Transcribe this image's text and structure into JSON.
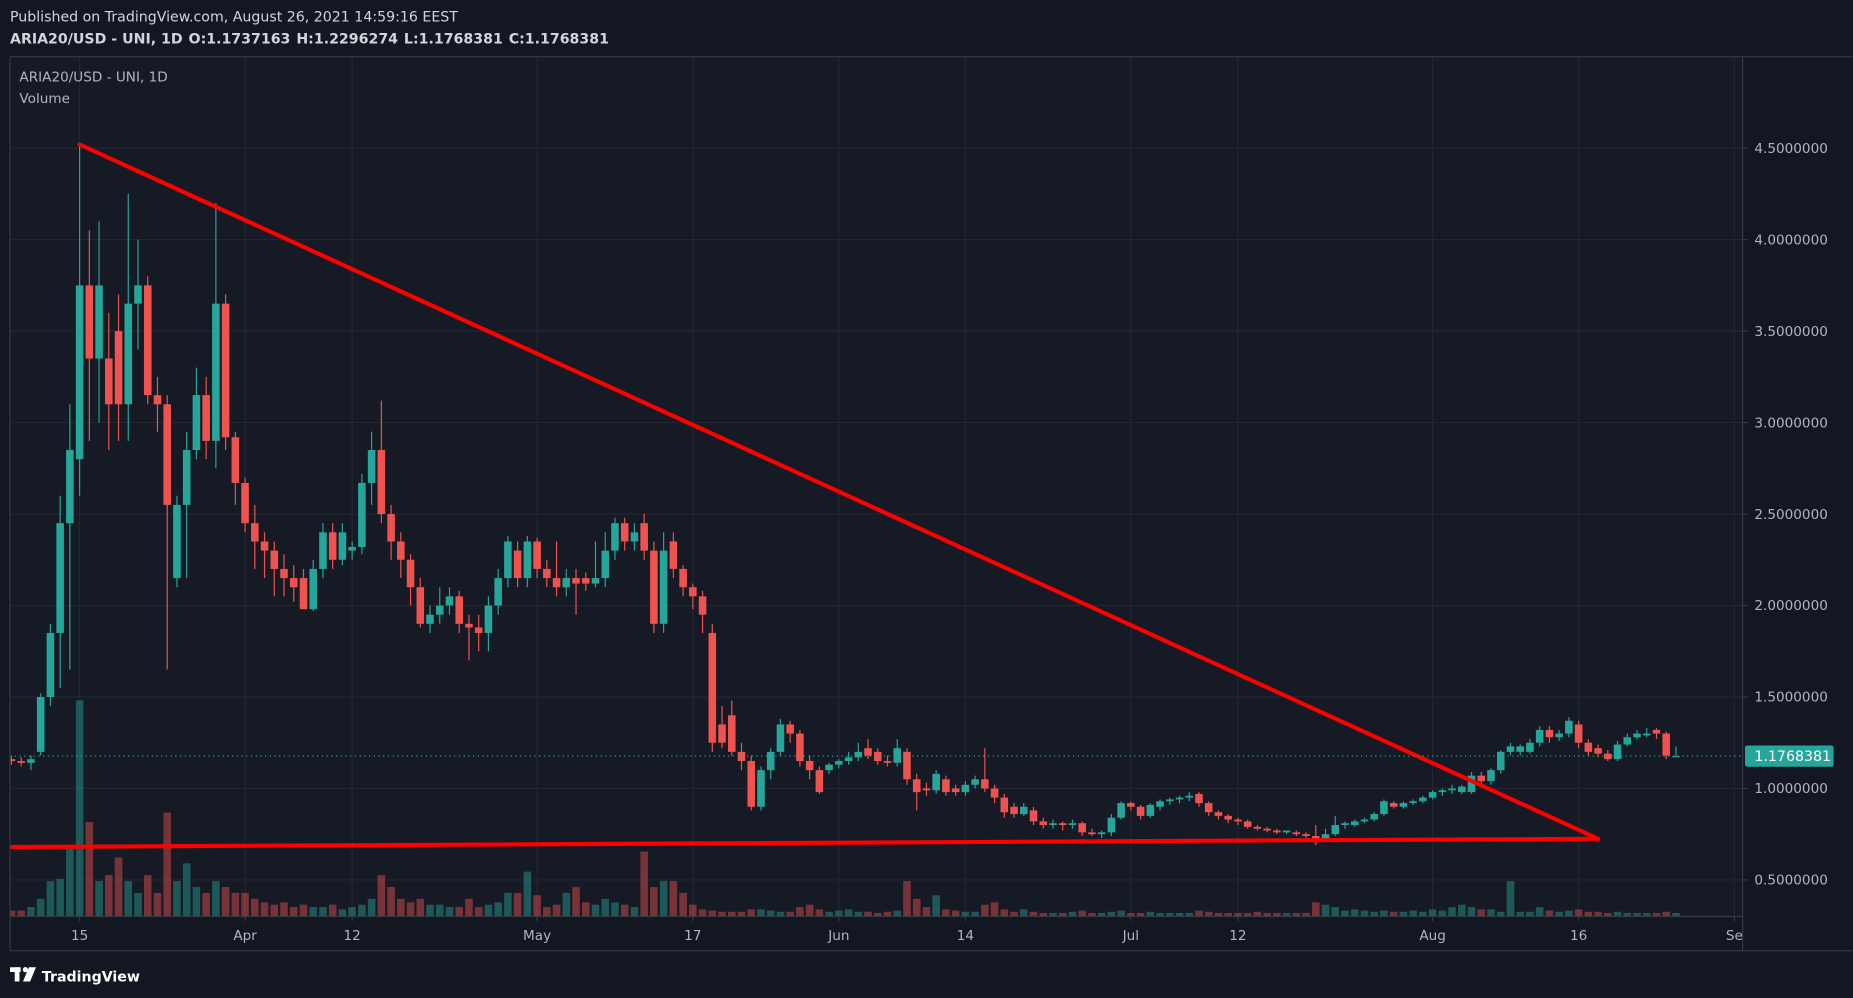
{
  "header": {
    "published": "Published on TradingView.com, August 26, 2021 14:59:16 EEST",
    "brand": "TradingView"
  },
  "chart_data": {
    "type": "candlestick",
    "symbol": "ARIA20/USD - UNI, 1D",
    "volume_label": "Volume",
    "ohlc_labels": [
      "O:",
      "H:",
      "L:",
      "C:"
    ],
    "up_color": "#26a69a",
    "down_color": "#ef5350",
    "x": [
      "2021-03-08",
      "2021-03-09",
      "2021-03-10",
      "2021-03-11",
      "2021-03-12",
      "2021-03-13",
      "2021-03-14",
      "2021-03-15",
      "2021-03-16",
      "2021-03-17",
      "2021-03-18",
      "2021-03-19",
      "2021-03-20",
      "2021-03-21",
      "2021-03-22",
      "2021-03-23",
      "2021-03-24",
      "2021-03-25",
      "2021-03-26",
      "2021-03-27",
      "2021-03-28",
      "2021-03-29",
      "2021-03-30",
      "2021-03-31",
      "2021-04-01",
      "2021-04-02",
      "2021-04-03",
      "2021-04-04",
      "2021-04-05",
      "2021-04-06",
      "2021-04-07",
      "2021-04-08",
      "2021-04-09",
      "2021-04-10",
      "2021-04-11",
      "2021-04-12",
      "2021-04-13",
      "2021-04-14",
      "2021-04-15",
      "2021-04-16",
      "2021-04-17",
      "2021-04-18",
      "2021-04-19",
      "2021-04-20",
      "2021-04-21",
      "2021-04-22",
      "2021-04-23",
      "2021-04-24",
      "2021-04-25",
      "2021-04-26",
      "2021-04-27",
      "2021-04-28",
      "2021-04-29",
      "2021-04-30",
      "2021-05-01",
      "2021-05-02",
      "2021-05-03",
      "2021-05-04",
      "2021-05-05",
      "2021-05-06",
      "2021-05-07",
      "2021-05-08",
      "2021-05-09",
      "2021-05-10",
      "2021-05-11",
      "2021-05-12",
      "2021-05-13",
      "2021-05-14",
      "2021-05-15",
      "2021-05-16",
      "2021-05-17",
      "2021-05-18",
      "2021-05-19",
      "2021-05-20",
      "2021-05-21",
      "2021-05-22",
      "2021-05-23",
      "2021-05-24",
      "2021-05-25",
      "2021-05-26",
      "2021-05-27",
      "2021-05-28",
      "2021-05-29",
      "2021-05-30",
      "2021-05-31",
      "2021-06-01",
      "2021-06-02",
      "2021-06-03",
      "2021-06-04",
      "2021-06-05",
      "2021-06-06",
      "2021-06-07",
      "2021-06-08",
      "2021-06-09",
      "2021-06-10",
      "2021-06-11",
      "2021-06-12",
      "2021-06-13",
      "2021-06-14",
      "2021-06-15",
      "2021-06-16",
      "2021-06-17",
      "2021-06-18",
      "2021-06-19",
      "2021-06-20",
      "2021-06-21",
      "2021-06-22",
      "2021-06-23",
      "2021-06-24",
      "2021-06-25",
      "2021-06-26",
      "2021-06-27",
      "2021-06-28",
      "2021-06-29",
      "2021-06-30",
      "2021-07-01",
      "2021-07-02",
      "2021-07-03",
      "2021-07-04",
      "2021-07-05",
      "2021-07-06",
      "2021-07-07",
      "2021-07-08",
      "2021-07-09",
      "2021-07-10",
      "2021-07-11",
      "2021-07-12",
      "2021-07-13",
      "2021-07-14",
      "2021-07-15",
      "2021-07-16",
      "2021-07-17",
      "2021-07-18",
      "2021-07-19",
      "2021-07-20",
      "2021-07-21",
      "2021-07-22",
      "2021-07-23",
      "2021-07-24",
      "2021-07-25",
      "2021-07-26",
      "2021-07-27",
      "2021-07-28",
      "2021-07-29",
      "2021-07-30",
      "2021-07-31",
      "2021-08-01",
      "2021-08-02",
      "2021-08-03",
      "2021-08-04",
      "2021-08-05",
      "2021-08-06",
      "2021-08-07",
      "2021-08-08",
      "2021-08-09",
      "2021-08-10",
      "2021-08-11",
      "2021-08-12",
      "2021-08-13",
      "2021-08-14",
      "2021-08-15",
      "2021-08-16",
      "2021-08-17",
      "2021-08-18",
      "2021-08-19",
      "2021-08-20",
      "2021-08-21",
      "2021-08-22",
      "2021-08-23",
      "2021-08-24",
      "2021-08-25",
      "2021-08-26"
    ],
    "open": [
      1.16,
      1.15,
      1.14,
      1.2,
      1.5,
      1.85,
      2.45,
      2.8,
      3.75,
      3.35,
      3.35,
      3.5,
      3.1,
      3.65,
      3.75,
      3.15,
      3.1,
      2.15,
      2.55,
      2.85,
      3.15,
      2.9,
      3.65,
      2.92,
      2.67,
      2.45,
      2.35,
      2.3,
      2.2,
      2.15,
      2.15,
      1.98,
      2.2,
      2.4,
      2.25,
      2.3,
      2.32,
      2.67,
      2.85,
      2.5,
      2.35,
      2.25,
      2.1,
      1.9,
      1.95,
      2.0,
      2.05,
      1.9,
      1.88,
      1.85,
      2.0,
      2.15,
      2.3,
      2.15,
      2.35,
      2.2,
      2.15,
      2.1,
      2.15,
      2.15,
      2.12,
      2.15,
      2.3,
      2.45,
      2.35,
      2.45,
      2.3,
      1.9,
      2.35,
      2.2,
      2.1,
      2.05,
      1.85,
      1.35,
      1.4,
      1.2,
      1.15,
      0.9,
      1.1,
      1.2,
      1.35,
      1.3,
      1.15,
      1.1,
      1.1,
      1.13,
      1.15,
      1.17,
      1.22,
      1.2,
      1.15,
      1.14,
      1.2,
      1.05,
      1.0,
      0.99,
      1.05,
      1.0,
      0.98,
      1.02,
      1.05,
      1.0,
      0.95,
      0.9,
      0.86,
      0.88,
      0.82,
      0.8,
      0.81,
      0.8,
      0.81,
      0.76,
      0.75,
      0.76,
      0.84,
      0.92,
      0.9,
      0.85,
      0.9,
      0.93,
      0.94,
      0.95,
      0.97,
      0.92,
      0.87,
      0.85,
      0.83,
      0.82,
      0.79,
      0.78,
      0.77,
      0.76,
      0.76,
      0.75,
      0.74,
      0.72,
      0.75,
      0.8,
      0.8,
      0.82,
      0.83,
      0.86,
      0.92,
      0.9,
      0.92,
      0.93,
      0.95,
      0.98,
      0.99,
      0.98,
      0.98,
      1.07,
      1.04,
      1.1,
      1.2,
      1.2,
      1.2,
      1.25,
      1.32,
      1.28,
      1.3,
      1.35,
      1.25,
      1.22,
      1.19,
      1.16,
      1.24,
      1.28,
      1.29,
      1.32,
      1.3,
      1.1737163
    ],
    "high": [
      1.18,
      1.17,
      1.18,
      1.52,
      1.9,
      2.6,
      3.1,
      4.52,
      4.05,
      4.1,
      3.6,
      3.7,
      4.25,
      4.0,
      3.8,
      3.25,
      3.15,
      2.6,
      2.95,
      3.3,
      3.25,
      4.2,
      3.7,
      2.95,
      2.7,
      2.55,
      2.4,
      2.35,
      2.28,
      2.22,
      2.2,
      2.25,
      2.45,
      2.45,
      2.45,
      2.35,
      2.72,
      2.95,
      3.12,
      2.55,
      2.4,
      2.28,
      2.15,
      2.0,
      2.1,
      2.1,
      2.08,
      1.95,
      1.95,
      2.05,
      2.2,
      2.38,
      2.35,
      2.38,
      2.37,
      2.25,
      2.35,
      2.2,
      2.2,
      2.18,
      2.35,
      2.4,
      2.48,
      2.48,
      2.45,
      2.5,
      2.35,
      2.4,
      2.4,
      2.22,
      2.12,
      2.08,
      1.9,
      1.45,
      1.48,
      1.25,
      1.18,
      1.12,
      1.22,
      1.38,
      1.37,
      1.32,
      1.18,
      1.12,
      1.14,
      1.16,
      1.2,
      1.25,
      1.27,
      1.22,
      1.18,
      1.27,
      1.22,
      1.08,
      1.03,
      1.1,
      1.07,
      1.02,
      1.04,
      1.07,
      1.22,
      1.02,
      0.97,
      0.92,
      0.92,
      0.9,
      0.84,
      0.83,
      0.82,
      0.83,
      0.82,
      0.78,
      0.77,
      0.86,
      0.93,
      0.93,
      0.91,
      0.92,
      0.94,
      0.95,
      0.96,
      0.98,
      0.98,
      0.93,
      0.88,
      0.86,
      0.84,
      0.83,
      0.8,
      0.79,
      0.78,
      0.77,
      0.77,
      0.76,
      0.8,
      0.78,
      0.85,
      0.82,
      0.83,
      0.84,
      0.87,
      0.94,
      0.93,
      0.93,
      0.94,
      0.96,
      0.99,
      1.0,
      1.02,
      1.02,
      1.09,
      1.09,
      1.11,
      1.21,
      1.25,
      1.24,
      1.27,
      1.34,
      1.34,
      1.32,
      1.39,
      1.37,
      1.27,
      1.24,
      1.21,
      1.26,
      1.3,
      1.32,
      1.33,
      1.33,
      1.31,
      1.2296274
    ],
    "low": [
      1.13,
      1.12,
      1.1,
      1.18,
      1.45,
      1.55,
      1.65,
      2.6,
      2.9,
      3.0,
      2.85,
      2.9,
      2.9,
      3.4,
      3.1,
      2.95,
      1.65,
      2.1,
      2.15,
      2.8,
      2.8,
      2.75,
      2.85,
      2.55,
      2.4,
      2.2,
      2.15,
      2.05,
      2.05,
      2.02,
      1.98,
      1.97,
      2.15,
      2.2,
      2.22,
      2.25,
      2.28,
      2.55,
      2.45,
      2.25,
      2.15,
      2.0,
      1.88,
      1.85,
      1.9,
      1.95,
      1.85,
      1.7,
      1.75,
      1.75,
      1.95,
      2.1,
      2.1,
      2.1,
      2.15,
      2.1,
      2.05,
      2.05,
      1.95,
      2.08,
      2.1,
      2.1,
      2.25,
      2.3,
      2.3,
      2.25,
      1.85,
      1.85,
      2.15,
      2.05,
      1.98,
      1.85,
      1.2,
      1.22,
      1.18,
      1.1,
      0.88,
      0.88,
      1.05,
      1.18,
      1.25,
      1.12,
      1.05,
      0.97,
      1.08,
      1.11,
      1.13,
      1.15,
      1.16,
      1.13,
      1.12,
      1.12,
      1.02,
      0.88,
      0.96,
      0.97,
      0.96,
      0.96,
      0.96,
      1.0,
      0.98,
      0.92,
      0.84,
      0.84,
      0.85,
      0.8,
      0.78,
      0.78,
      0.77,
      0.78,
      0.74,
      0.74,
      0.73,
      0.74,
      0.83,
      0.88,
      0.83,
      0.84,
      0.88,
      0.91,
      0.92,
      0.93,
      0.9,
      0.85,
      0.83,
      0.81,
      0.8,
      0.78,
      0.77,
      0.76,
      0.75,
      0.75,
      0.74,
      0.73,
      0.69,
      0.71,
      0.74,
      0.78,
      0.79,
      0.81,
      0.82,
      0.85,
      0.89,
      0.89,
      0.91,
      0.92,
      0.94,
      0.96,
      0.97,
      0.97,
      0.97,
      1.02,
      1.02,
      1.08,
      1.18,
      1.18,
      1.19,
      1.23,
      1.25,
      1.26,
      1.28,
      1.22,
      1.18,
      1.17,
      1.15,
      1.15,
      1.23,
      1.27,
      1.28,
      1.27,
      1.16,
      1.1768381
    ],
    "close": [
      1.15,
      1.14,
      1.16,
      1.5,
      1.85,
      2.45,
      2.85,
      3.75,
      3.35,
      3.75,
      3.1,
      3.1,
      3.65,
      3.75,
      3.15,
      3.1,
      2.55,
      2.55,
      2.85,
      3.15,
      2.9,
      3.65,
      2.92,
      2.67,
      2.45,
      2.35,
      2.3,
      2.2,
      2.15,
      2.1,
      1.98,
      2.2,
      2.4,
      2.25,
      2.4,
      2.32,
      2.67,
      2.85,
      2.5,
      2.35,
      2.25,
      2.1,
      1.9,
      1.95,
      2.0,
      2.05,
      1.9,
      1.88,
      1.85,
      2.0,
      2.15,
      2.35,
      2.15,
      2.35,
      2.2,
      2.15,
      2.1,
      2.15,
      2.12,
      2.12,
      2.15,
      2.3,
      2.45,
      2.35,
      2.4,
      2.3,
      1.9,
      2.3,
      2.2,
      2.1,
      2.05,
      1.95,
      1.25,
      1.25,
      1.2,
      1.15,
      0.9,
      1.1,
      1.2,
      1.35,
      1.3,
      1.15,
      1.1,
      0.98,
      1.13,
      1.15,
      1.17,
      1.2,
      1.18,
      1.15,
      1.14,
      1.22,
      1.05,
      0.98,
      0.99,
      1.08,
      0.98,
      0.98,
      1.02,
      1.05,
      1.0,
      0.95,
      0.87,
      0.86,
      0.9,
      0.82,
      0.8,
      0.81,
      0.8,
      0.81,
      0.76,
      0.75,
      0.76,
      0.84,
      0.92,
      0.9,
      0.85,
      0.91,
      0.93,
      0.94,
      0.95,
      0.96,
      0.92,
      0.87,
      0.85,
      0.83,
      0.82,
      0.79,
      0.78,
      0.77,
      0.76,
      0.77,
      0.75,
      0.74,
      0.72,
      0.75,
      0.8,
      0.81,
      0.82,
      0.83,
      0.86,
      0.93,
      0.9,
      0.92,
      0.93,
      0.95,
      0.98,
      0.99,
      1.0,
      1.01,
      1.07,
      1.04,
      1.1,
      1.2,
      1.23,
      1.23,
      1.25,
      1.32,
      1.28,
      1.3,
      1.37,
      1.25,
      1.2,
      1.19,
      1.16,
      1.24,
      1.28,
      1.3,
      1.3,
      1.3,
      1.18,
      1.1768381
    ],
    "volume": [
      5,
      5,
      8,
      15,
      30,
      32,
      60,
      183,
      80,
      30,
      35,
      50,
      30,
      20,
      35,
      20,
      88,
      30,
      45,
      25,
      20,
      30,
      25,
      20,
      20,
      15,
      12,
      10,
      12,
      8,
      10,
      8,
      8,
      10,
      6,
      8,
      10,
      15,
      35,
      25,
      15,
      12,
      15,
      10,
      10,
      8,
      8,
      15,
      8,
      10,
      12,
      20,
      20,
      38,
      18,
      8,
      10,
      20,
      25,
      12,
      10,
      15,
      12,
      10,
      8,
      55,
      25,
      30,
      30,
      20,
      10,
      6,
      5,
      4,
      4,
      4,
      6,
      6,
      5,
      4,
      4,
      8,
      10,
      6,
      4,
      5,
      6,
      4,
      4,
      3,
      4,
      5,
      30,
      15,
      8,
      18,
      6,
      5,
      4,
      4,
      10,
      12,
      6,
      4,
      6,
      4,
      3,
      3,
      3,
      4,
      5,
      3,
      3,
      4,
      5,
      3,
      3,
      4,
      3,
      3,
      3,
      3,
      5,
      4,
      3,
      3,
      3,
      3,
      4,
      3,
      3,
      3,
      3,
      3,
      12,
      10,
      8,
      5,
      6,
      5,
      4,
      5,
      4,
      4,
      5,
      4,
      6,
      5,
      8,
      10,
      8,
      6,
      6,
      4,
      30,
      4,
      4,
      8,
      5,
      4,
      5,
      6,
      4,
      4,
      3,
      4,
      3,
      3,
      3,
      3,
      4,
      3
    ],
    "xlim": [
      "2021-03-08",
      "2021-09-01"
    ],
    "xticks": [
      {
        "value": "2021-03-15",
        "label": "15"
      },
      {
        "value": "2021-04-01",
        "label": "Apr"
      },
      {
        "value": "2021-04-12",
        "label": "12"
      },
      {
        "value": "2021-05-01",
        "label": "May"
      },
      {
        "value": "2021-05-17",
        "label": "17"
      },
      {
        "value": "2021-06-01",
        "label": "Jun"
      },
      {
        "value": "2021-06-14",
        "label": "14"
      },
      {
        "value": "2021-07-01",
        "label": "Jul"
      },
      {
        "value": "2021-07-12",
        "label": "12"
      },
      {
        "value": "2021-08-01",
        "label": "Aug"
      },
      {
        "value": "2021-08-16",
        "label": "16"
      },
      {
        "value": "2021-09-01",
        "label": "Se"
      }
    ],
    "ylim": [
      0.3,
      5.0
    ],
    "yticks": [
      {
        "value": 0.5,
        "label": "0.5000000"
      },
      {
        "value": 1,
        "label": "1.0000000"
      },
      {
        "value": 1.5,
        "label": "1.5000000"
      },
      {
        "value": 2,
        "label": "2.0000000"
      },
      {
        "value": 2.5,
        "label": "2.5000000"
      },
      {
        "value": 3,
        "label": "3.0000000"
      },
      {
        "value": 3.5,
        "label": "3.5000000"
      },
      {
        "value": 4,
        "label": "4.0000000"
      },
      {
        "value": 4.5,
        "label": "4.5000000"
      }
    ],
    "grid": true,
    "trendlines": [
      {
        "color": "#ff0000",
        "x": [
          "2021-03-15",
          "2021-08-18"
        ],
        "y": [
          4.52,
          0.725
        ]
      },
      {
        "color": "#ff0000",
        "x": [
          "2021-03-08",
          "2021-08-18"
        ],
        "y": [
          0.68,
          0.725
        ]
      }
    ]
  }
}
